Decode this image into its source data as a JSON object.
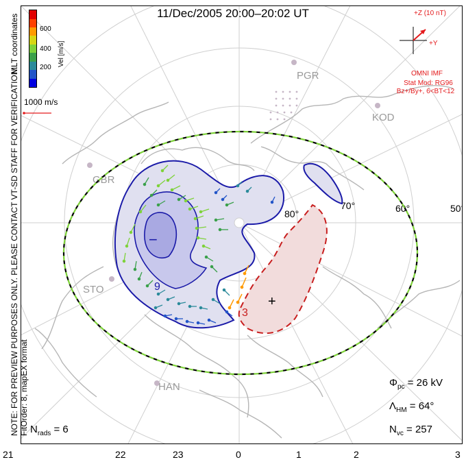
{
  "title": "11/Dec/2005 20:00–20:02 UT",
  "coords_label": "MLT coordinates",
  "side_note_line1": "NOTE: FOR PREVIEW PURPOSES ONLY. PLEASE CONTACT VT-SD STAFF FOR VERIFICATION.",
  "side_note_line2": "FitOrder: 8, mapEX format",
  "colorbar": {
    "label": "Vel [m/s]",
    "ticks": [
      "600",
      "400",
      "200"
    ],
    "colors": [
      "#0000e0",
      "#2255c8",
      "#2a8a9a",
      "#3aa04a",
      "#7ed23a",
      "#d6d614",
      "#ff9a00",
      "#ff4000",
      "#e00000"
    ]
  },
  "scale_label": "1000 m/s",
  "imf": {
    "z_label": "+Z (10 nT)",
    "y_label": "+Y",
    "source": "OMNI IMF",
    "model": "Stat Mod: RG96",
    "condition": "Bz+/By+, 6<BT<12",
    "color": "#e41a1c"
  },
  "stations": [
    "PGR",
    "KOD",
    "GBR",
    "STO",
    "HAN"
  ],
  "lat_labels": [
    "80°",
    "70°",
    "60°",
    "50°"
  ],
  "hours": [
    "21",
    "22",
    "23",
    "0",
    "1",
    "2",
    "3"
  ],
  "contours": {
    "min_label": "−",
    "max_label": "+",
    "label_9": "9",
    "label_3": "3",
    "negative_color": "#1a1aa8",
    "positive_color": "#c81e1e"
  },
  "stats": {
    "phi_sym": "Φ",
    "phi_sub": "pc",
    "phi_value": "= 26 kV",
    "lambda_sym": "Λ",
    "lambda_sub": "HM",
    "lambda_value": "= 64°",
    "nvc_sym": "N",
    "nvc_sub": "vc",
    "nvc_value": "= 257",
    "nrads_sym": "N",
    "nrads_sub": "rads",
    "nrads_value": "= 6"
  }
}
